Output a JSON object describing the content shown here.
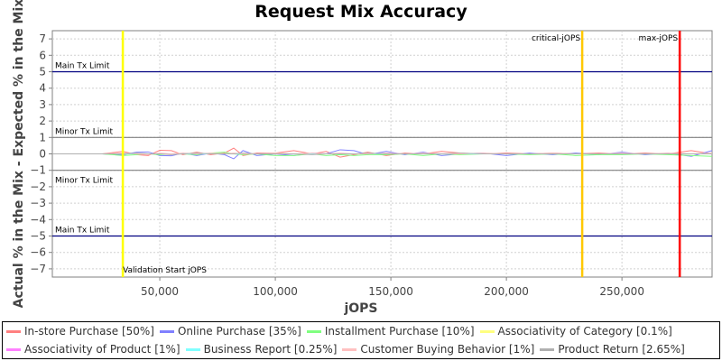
{
  "chart_data": {
    "type": "line",
    "title": "Request Mix Accuracy",
    "xlabel": "jOPS",
    "ylabel": "Actual % in the Mix - Expected % in the Mix",
    "xlim": [
      3500,
      289000
    ],
    "ylim": [
      -7.5,
      7.5
    ],
    "grid": true,
    "legend_placement": "bottom",
    "xticks": [
      {
        "v": 50000,
        "label": "50,000"
      },
      {
        "v": 100000,
        "label": "100,000"
      },
      {
        "v": 150000,
        "label": "150,000"
      },
      {
        "v": 200000,
        "label": "200,000"
      },
      {
        "v": 250000,
        "label": "250,000"
      }
    ],
    "yticks": [
      7,
      6,
      5,
      4,
      3,
      2,
      1,
      0,
      -1,
      -2,
      -3,
      -4,
      -5,
      -6,
      -7
    ],
    "hlines": [
      {
        "y": 5,
        "label": "Main Tx Limit",
        "color": "#000080",
        "label_pos": "above"
      },
      {
        "y": 1,
        "label": "Minor Tx Limit",
        "color": "#808080",
        "label_pos": "above"
      },
      {
        "y": -1,
        "label": "Minor Tx Limit",
        "color": "#808080",
        "label_pos": "above-below"
      },
      {
        "y": -5,
        "label": "Main Tx Limit",
        "color": "#000080",
        "label_pos": "above"
      }
    ],
    "vlines": [
      {
        "x": 34000,
        "label": "Validation Start jOPS",
        "color": "#ffff00",
        "label_pos": "bottom"
      },
      {
        "x": 232800,
        "label": "critical-jOPS",
        "color": "#ffc800",
        "label_pos": "top"
      },
      {
        "x": 275000,
        "label": "max-jOPS",
        "color": "#ff0000",
        "label_pos": "top"
      }
    ],
    "x": [
      3500,
      15000,
      25000,
      34000,
      40000,
      45000,
      50000,
      55000,
      60000,
      66000,
      72000,
      78000,
      82000,
      86000,
      92000,
      100000,
      108000,
      116000,
      122000,
      128000,
      134000,
      140000,
      148000,
      156000,
      164000,
      172000,
      180000,
      190000,
      200000,
      210000,
      220000,
      230000,
      240000,
      250000,
      260000,
      270000,
      280000,
      289000
    ],
    "series": [
      {
        "name": "In-store Purchase [50%]",
        "color": "#ff8080",
        "values": [
          0,
          0,
          0,
          0.15,
          -0.05,
          -0.1,
          0.22,
          0.2,
          -0.05,
          0.1,
          -0.05,
          0.05,
          0.35,
          -0.1,
          0.05,
          0.05,
          0.2,
          0.0,
          0.15,
          -0.2,
          -0.05,
          0.1,
          -0.1,
          0.05,
          0.0,
          0.15,
          0.05,
          0.0,
          0.05,
          0.0,
          0.05,
          0.0,
          0.05,
          0.0,
          0.05,
          0.0,
          0.2,
          0.0
        ]
      },
      {
        "name": "Online Purchase [35%]",
        "color": "#8080ff",
        "values": [
          0,
          0,
          0,
          -0.05,
          0.1,
          0.12,
          -0.1,
          -0.12,
          0.05,
          -0.1,
          0.05,
          -0.05,
          -0.3,
          0.2,
          -0.1,
          0.0,
          -0.1,
          0.05,
          0.0,
          0.25,
          0.2,
          -0.05,
          0.15,
          -0.05,
          0.1,
          -0.1,
          0.0,
          0.05,
          -0.1,
          0.05,
          -0.05,
          0.05,
          -0.05,
          0.1,
          -0.05,
          0.05,
          -0.15,
          0.2
        ]
      },
      {
        "name": "Installment Purchase [10%]",
        "color": "#80ff80",
        "values": [
          0,
          0,
          0,
          -0.1,
          -0.05,
          0.0,
          -0.05,
          0.0,
          0.0,
          -0.05,
          0.05,
          0.1,
          0.0,
          -0.05,
          0.0,
          -0.1,
          -0.1,
          0.0,
          -0.1,
          -0.05,
          -0.1,
          -0.05,
          -0.05,
          0.0,
          -0.1,
          0.0,
          -0.05,
          0.0,
          0.0,
          -0.05,
          0.0,
          -0.1,
          -0.05,
          -0.05,
          0.0,
          -0.05,
          -0.1,
          -0.15
        ]
      },
      {
        "name": "Associativity of Category [0.1%]",
        "color": "#ffff80",
        "values": [
          0,
          0,
          0,
          0,
          0,
          0,
          0,
          0,
          0,
          0,
          0,
          0,
          0,
          0,
          0,
          0,
          0,
          0,
          0,
          0,
          0,
          0,
          0,
          0,
          0,
          0,
          0,
          0,
          0,
          0,
          0,
          0,
          0,
          0,
          0,
          0,
          0,
          0
        ]
      },
      {
        "name": "Associativity of Product [1%]",
        "color": "#ff80ff",
        "values": [
          0,
          0,
          0,
          0,
          0,
          0,
          0,
          0,
          0,
          0,
          0,
          0,
          0,
          0,
          0,
          0,
          0,
          0,
          0,
          0,
          0,
          0,
          0,
          0,
          0,
          0,
          0,
          0,
          0,
          0,
          0,
          0,
          0,
          0,
          0,
          0,
          0,
          0
        ]
      },
      {
        "name": "Business Report [0.25%]",
        "color": "#80ffff",
        "values": [
          0,
          0,
          0,
          0,
          0,
          0,
          0,
          0,
          0,
          0,
          0,
          0,
          0,
          0,
          0,
          0,
          0,
          0,
          0,
          0,
          0,
          0,
          0,
          0,
          0,
          0,
          0,
          0,
          0,
          0,
          0,
          0,
          0,
          0,
          0,
          0,
          0,
          0
        ]
      },
      {
        "name": "Customer Buying Behavior [1%]",
        "color": "#ffc0c0",
        "values": [
          0,
          0,
          0,
          0.05,
          0,
          -0.05,
          0.05,
          0,
          0.05,
          0,
          0.05,
          0,
          0.05,
          0,
          0,
          0.05,
          0,
          0.05,
          0,
          0.05,
          0,
          0,
          0.05,
          0,
          0.05,
          0,
          0,
          0.05,
          0,
          0,
          0.05,
          0,
          0,
          0.05,
          0,
          0.05,
          0,
          0.05
        ]
      },
      {
        "name": "Product Return [2.65%]",
        "color": "#b0b0b0",
        "values": [
          0,
          0,
          0,
          0,
          0.05,
          0,
          0,
          -0.05,
          0,
          0.05,
          0,
          0,
          0,
          0.05,
          0,
          0,
          0,
          -0.05,
          0,
          0,
          0,
          0.05,
          0,
          0,
          0,
          0,
          0.05,
          0,
          0,
          0,
          0,
          0,
          0,
          0,
          0,
          0,
          0,
          0
        ]
      }
    ]
  }
}
